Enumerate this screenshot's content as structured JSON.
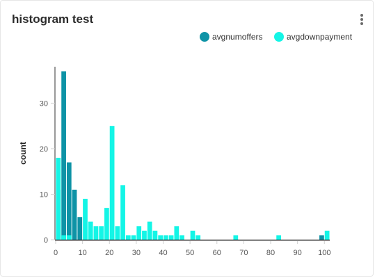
{
  "card": {
    "title": "histogram test"
  },
  "menu": {
    "icon": "more-vertical-icon"
  },
  "colors": {
    "avgnumoffers": "#0e93a6",
    "avgdownpayment": "#14f5e6",
    "axis": "#333333",
    "tick": "#d0d0d0"
  },
  "chart_data": {
    "type": "bar",
    "title": "histogram test",
    "xlabel": "",
    "ylabel": "count",
    "xlim": [
      0,
      102
    ],
    "ylim": [
      0,
      38
    ],
    "bin_width": 2,
    "x_ticks": [
      0,
      10,
      20,
      30,
      40,
      50,
      60,
      70,
      80,
      90,
      100
    ],
    "y_ticks": [
      0,
      10,
      20,
      30
    ],
    "grid": false,
    "legend_position": "top-right",
    "series": [
      {
        "name": "avgnumoffers",
        "x": [
          0,
          2,
          4,
          6,
          8,
          98
        ],
        "values": [
          11,
          37,
          17,
          11,
          5,
          1
        ]
      },
      {
        "name": "avgdownpayment",
        "x": [
          0,
          2,
          4,
          10,
          12,
          14,
          16,
          18,
          20,
          22,
          24,
          26,
          28,
          30,
          32,
          34,
          36,
          38,
          40,
          42,
          44,
          46,
          50,
          52,
          66,
          82,
          100
        ],
        "values": [
          18,
          1,
          1,
          9,
          4,
          3,
          3,
          7,
          25,
          3,
          12,
          1,
          1,
          3,
          2,
          4,
          2,
          1,
          1,
          1,
          3,
          1,
          2,
          1,
          1,
          1,
          2
        ]
      }
    ]
  }
}
